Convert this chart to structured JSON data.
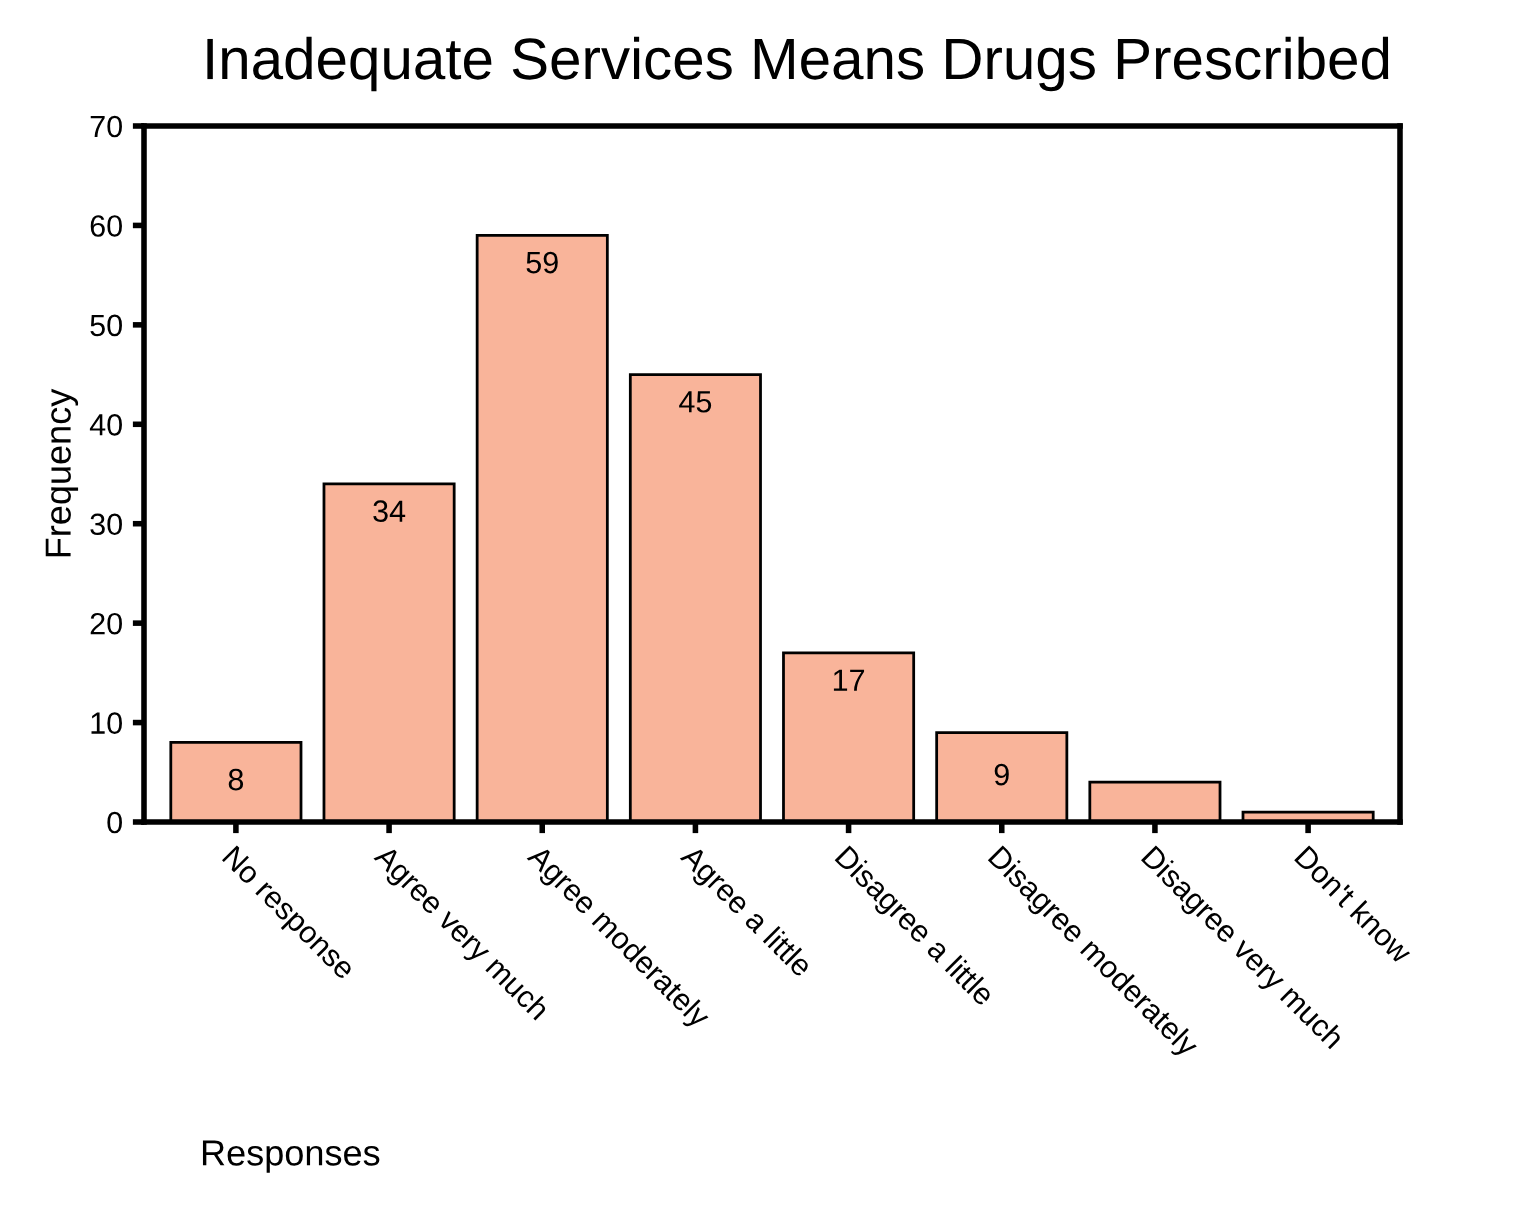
{
  "chart_data": {
    "type": "bar",
    "title": "Inadequate Services Means Drugs Prescribed",
    "xlabel": "Responses",
    "ylabel": "Frequency",
    "categories": [
      "No response",
      "Agree very much",
      "Agree moderately",
      "Agree a little",
      "Disagree a little",
      "Disagree moderately",
      "Disagree very much",
      "Don't know"
    ],
    "values": [
      8,
      34,
      59,
      45,
      17,
      9,
      4,
      1
    ],
    "value_labels": [
      "8",
      "34",
      "59",
      "45",
      "17",
      "9",
      null,
      null
    ],
    "color": "#f9b49a",
    "ylim": [
      0,
      70
    ],
    "yticks": [
      0,
      10,
      20,
      30,
      40,
      50,
      60,
      70
    ],
    "grid": false,
    "legend": false
  }
}
